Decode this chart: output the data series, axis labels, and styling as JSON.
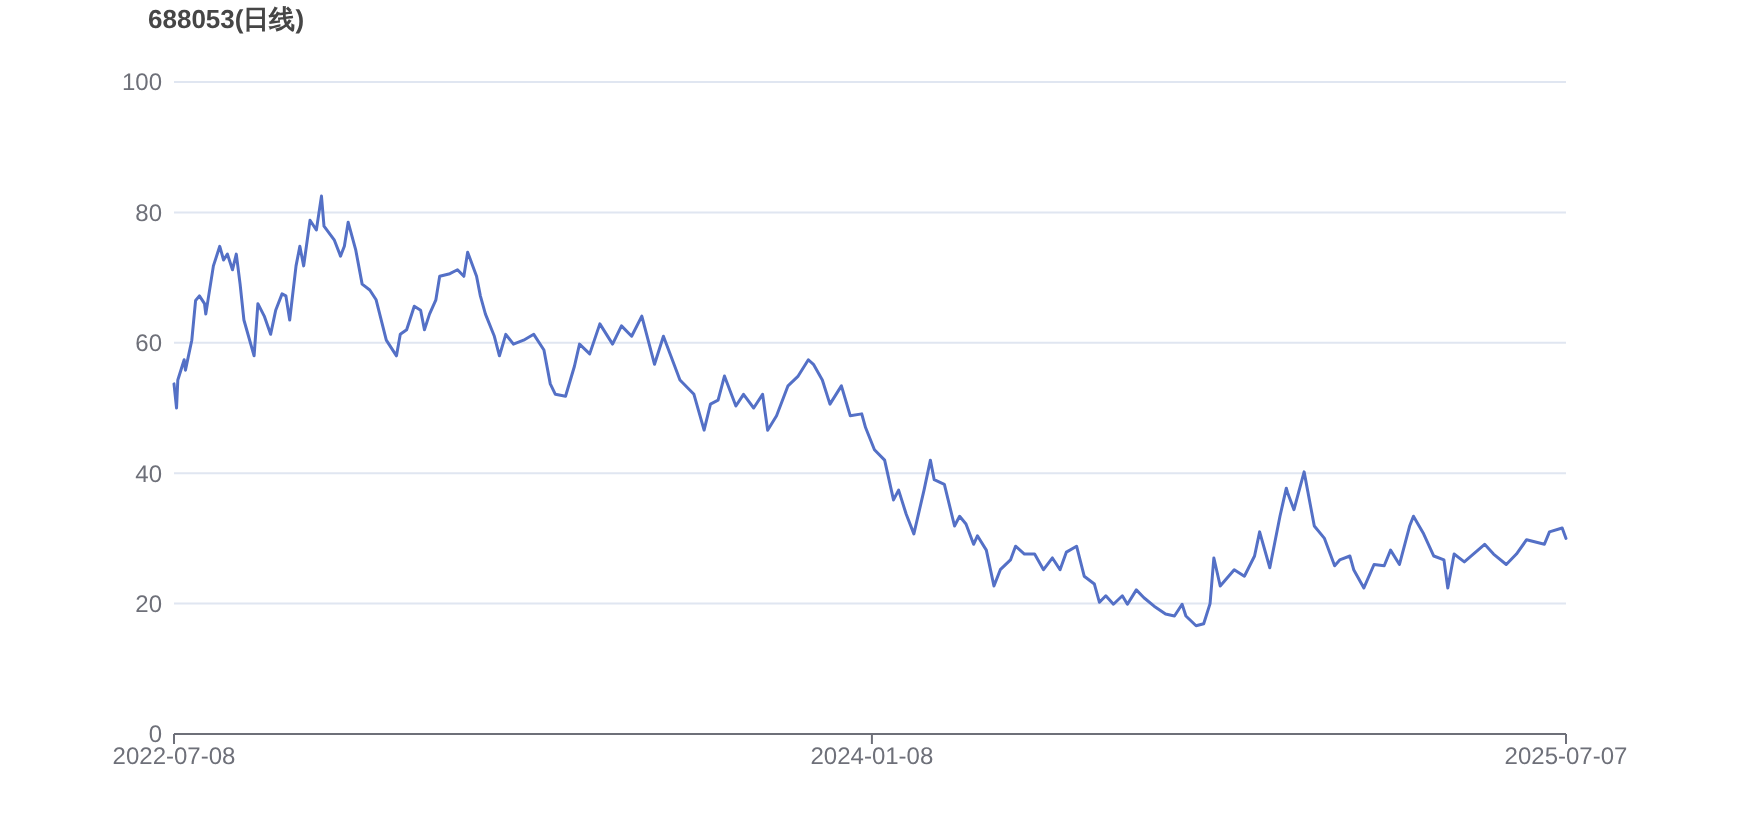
{
  "chart_data": {
    "type": "line",
    "title": "688053(日线)",
    "x": [
      "2022-07-08",
      "2022-07-10",
      "2022-07-11",
      "2022-07-16",
      "2022-07-17",
      "2022-07-22",
      "2022-07-25",
      "2022-07-28",
      "2022-08-01",
      "2022-08-02",
      "2022-08-08",
      "2022-08-13",
      "2022-08-16",
      "2022-08-19",
      "2022-08-23",
      "2022-08-26",
      "2022-08-29",
      "2022-09-01",
      "2022-09-09",
      "2022-09-12",
      "2022-09-17",
      "2022-09-22",
      "2022-09-26",
      "2022-10-01",
      "2022-10-04",
      "2022-10-07",
      "2022-10-12",
      "2022-10-15",
      "2022-10-18",
      "2022-10-23",
      "2022-10-28",
      "2022-11-01",
      "2022-11-03",
      "2022-11-11",
      "2022-11-16",
      "2022-11-19",
      "2022-11-22",
      "2022-11-28",
      "2022-12-03",
      "2022-12-09",
      "2022-12-14",
      "2022-12-22",
      "2022-12-30",
      "2023-01-02",
      "2023-01-07",
      "2023-01-13",
      "2023-01-18",
      "2023-01-21",
      "2023-01-25",
      "2023-01-30",
      "2023-02-02",
      "2023-02-10",
      "2023-02-16",
      "2023-02-21",
      "2023-02-24",
      "2023-03-03",
      "2023-03-06",
      "2023-03-10",
      "2023-03-17",
      "2023-03-21",
      "2023-03-26",
      "2023-04-01",
      "2023-04-09",
      "2023-04-17",
      "2023-04-25",
      "2023-04-30",
      "2023-05-04",
      "2023-05-12",
      "2023-05-19",
      "2023-05-23",
      "2023-05-31",
      "2023-06-08",
      "2023-06-18",
      "2023-06-25",
      "2023-07-03",
      "2023-07-11",
      "2023-07-21",
      "2023-07-28",
      "2023-08-10",
      "2023-08-21",
      "2023-08-29",
      "2023-09-03",
      "2023-09-09",
      "2023-09-14",
      "2023-09-23",
      "2023-09-29",
      "2023-10-07",
      "2023-10-14",
      "2023-10-18",
      "2023-10-25",
      "2023-11-03",
      "2023-11-11",
      "2023-11-19",
      "2023-11-23",
      "2023-11-30",
      "2023-12-06",
      "2023-12-15",
      "2023-12-22",
      "2023-12-31",
      "2024-01-03",
      "2024-01-10",
      "2024-01-18",
      "2024-01-25",
      "2024-01-29",
      "2024-02-04",
      "2024-02-10",
      "2024-02-18",
      "2024-02-23",
      "2024-02-26",
      "2024-03-05",
      "2024-03-13",
      "2024-03-17",
      "2024-03-22",
      "2024-03-28",
      "2024-03-31",
      "2024-04-07",
      "2024-04-13",
      "2024-04-18",
      "2024-04-26",
      "2024-04-30",
      "2024-05-07",
      "2024-05-15",
      "2024-05-22",
      "2024-05-29",
      "2024-06-04",
      "2024-06-09",
      "2024-06-17",
      "2024-06-23",
      "2024-07-01",
      "2024-07-05",
      "2024-07-10",
      "2024-07-16",
      "2024-07-23",
      "2024-07-27",
      "2024-08-03",
      "2024-08-09",
      "2024-08-17",
      "2024-08-26",
      "2024-09-02",
      "2024-09-08",
      "2024-09-11",
      "2024-09-19",
      "2024-09-25",
      "2024-09-30",
      "2024-10-03",
      "2024-10-08",
      "2024-10-19",
      "2024-10-27",
      "2024-11-04",
      "2024-11-08",
      "2024-11-16",
      "2024-11-24",
      "2024-11-29",
      "2024-11-30",
      "2024-12-05",
      "2024-12-13",
      "2024-12-21",
      "2024-12-29",
      "2025-01-06",
      "2025-01-10",
      "2025-01-18",
      "2025-01-21",
      "2025-01-29",
      "2025-02-06",
      "2025-02-14",
      "2025-02-19",
      "2025-02-26",
      "2025-03-06",
      "2025-03-09",
      "2025-03-17",
      "2025-03-25",
      "2025-04-02",
      "2025-04-05",
      "2025-04-10",
      "2025-04-18",
      "2025-05-04",
      "2025-05-11",
      "2025-05-21",
      "2025-05-29",
      "2025-06-06",
      "2025-06-20",
      "2025-06-24",
      "2025-07-04",
      "2025-07-07"
    ],
    "series": [
      {
        "color": "#5470c6",
        "values": [
          53.7,
          50,
          54.3,
          57.4,
          55.8,
          60.4,
          66.5,
          67.2,
          66,
          64.4,
          71.8,
          74.8,
          72.7,
          73.6,
          71.2,
          73.6,
          69,
          63.5,
          58,
          66,
          64.1,
          61.3,
          65,
          67.5,
          67.2,
          63.5,
          71.8,
          74.8,
          71.8,
          78.8,
          77.3,
          82.5,
          77.9,
          75.8,
          73.3,
          74.8,
          78.5,
          74.2,
          69,
          68.1,
          66.6,
          60.4,
          58,
          61.3,
          62,
          65.6,
          65,
          62,
          64.4,
          66.6,
          70.2,
          70.6,
          71.2,
          70.2,
          73.9,
          70.2,
          67.2,
          64.4,
          61,
          58,
          61.3,
          59.8,
          60.4,
          61.3,
          58.9,
          53.7,
          52.1,
          51.8,
          56.4,
          59.8,
          58.3,
          62.9,
          59.8,
          62.6,
          61,
          64.1,
          56.7,
          61,
          54.3,
          52.1,
          46.6,
          50.6,
          51.2,
          54.9,
          50.3,
          52.1,
          50,
          52.1,
          46.6,
          48.8,
          53.4,
          54.9,
          57.4,
          56.7,
          54.3,
          50.6,
          53.4,
          48.8,
          49.1,
          47,
          43.6,
          42,
          35.9,
          37.4,
          33.7,
          30.7,
          37.4,
          42,
          39,
          38.3,
          31.9,
          33.4,
          32.2,
          29.1,
          30.4,
          28.2,
          22.7,
          25.2,
          26.7,
          28.8,
          27.6,
          27.6,
          25.2,
          27,
          25.2,
          27.9,
          28.8,
          24.2,
          23,
          20.2,
          21.2,
          19.9,
          21.2,
          19.9,
          22.1,
          20.9,
          19.6,
          18.4,
          18.1,
          19.9,
          18.1,
          16.6,
          16.9,
          20,
          27,
          22.7,
          25.2,
          24.2,
          27.3,
          31,
          25.5,
          33.4,
          37.7,
          37,
          34.4,
          40.2,
          31.9,
          30,
          25.8,
          26.7,
          27.3,
          25.2,
          22.4,
          26,
          25.8,
          28.2,
          26,
          31.9,
          33.4,
          30.7,
          27.3,
          26.7,
          22.4,
          27.6,
          26.4,
          29.1,
          27.6,
          26,
          27.6,
          29.8,
          29.1,
          31,
          31.6,
          30
        ]
      }
    ],
    "xlim": [
      "2022-07-08",
      "2025-07-07"
    ],
    "xticks": [
      "2022-07-08",
      "2024-01-08",
      "2025-07-07"
    ],
    "ylim": [
      0,
      100
    ],
    "yticks": [
      0,
      20,
      40,
      60,
      80,
      100
    ],
    "grid": "y",
    "marker": "none",
    "line_style": "solid"
  }
}
